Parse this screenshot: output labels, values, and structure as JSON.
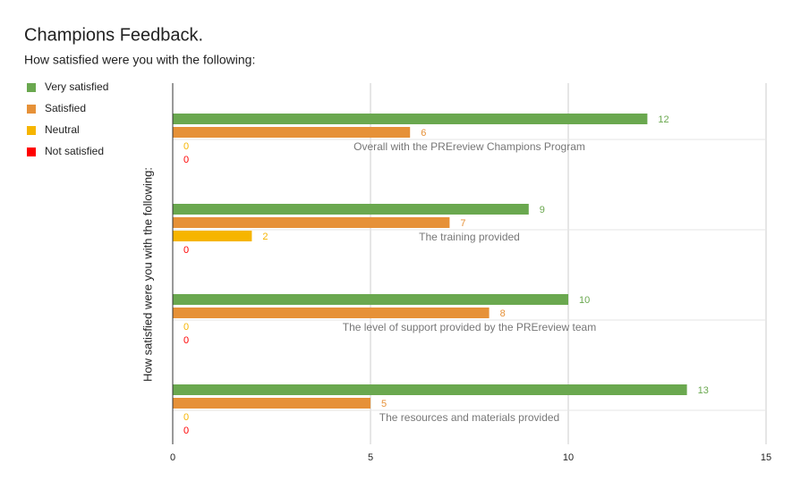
{
  "chart_data": {
    "type": "bar",
    "orientation": "horizontal",
    "title": "Champions Feedback.",
    "subtitle": "How satisfied were you with the following:",
    "y_axis_label": "How satisfied were you with the following:",
    "categories": [
      "Overall with the PREreview Champions Program",
      "The training provided",
      "The level of support provided by the PREreview team",
      "The resources and materials provided"
    ],
    "series": [
      {
        "name": "Very satisfied",
        "color": "#6aa84f",
        "values": [
          12,
          9,
          10,
          13
        ]
      },
      {
        "name": "Satisfied",
        "color": "#e69138",
        "values": [
          6,
          7,
          8,
          5
        ]
      },
      {
        "name": "Neutral",
        "color": "#f6b500",
        "values": [
          0,
          2,
          0,
          0
        ]
      },
      {
        "name": "Not satisfied",
        "color": "#ff0000",
        "values": [
          0,
          0,
          0,
          0
        ]
      }
    ],
    "xlim": [
      0,
      15
    ],
    "xticks": [
      0,
      5,
      10,
      15
    ],
    "grid": true,
    "legend": "left"
  }
}
